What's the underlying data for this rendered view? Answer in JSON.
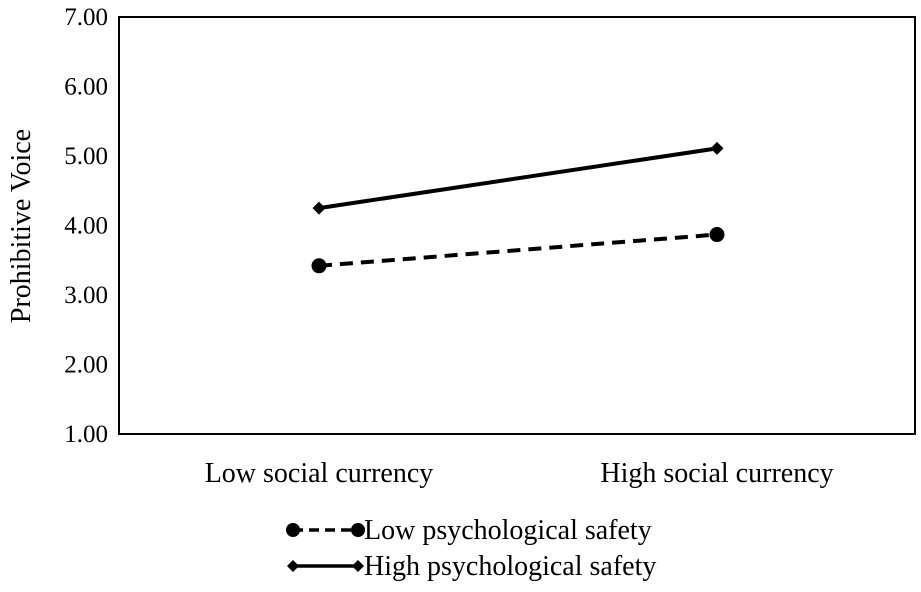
{
  "chart_data": {
    "type": "line",
    "categories": [
      "Low social currency",
      "High social currency"
    ],
    "ylabel": "Prohibitive Voice",
    "xlabel": "",
    "ylim": [
      1.0,
      7.0
    ],
    "yticks": [
      "1.00",
      "2.00",
      "3.00",
      "4.00",
      "5.00",
      "6.00",
      "7.00"
    ],
    "grid": false,
    "legend_position": "bottom",
    "series": [
      {
        "name": "Low psychological safety",
        "values": [
          3.42,
          3.87
        ],
        "style": "dashed",
        "marker": "circle",
        "color": "#000000"
      },
      {
        "name": "High psychological safety",
        "values": [
          4.25,
          5.11
        ],
        "style": "solid",
        "marker": "diamond",
        "color": "#000000"
      }
    ]
  }
}
